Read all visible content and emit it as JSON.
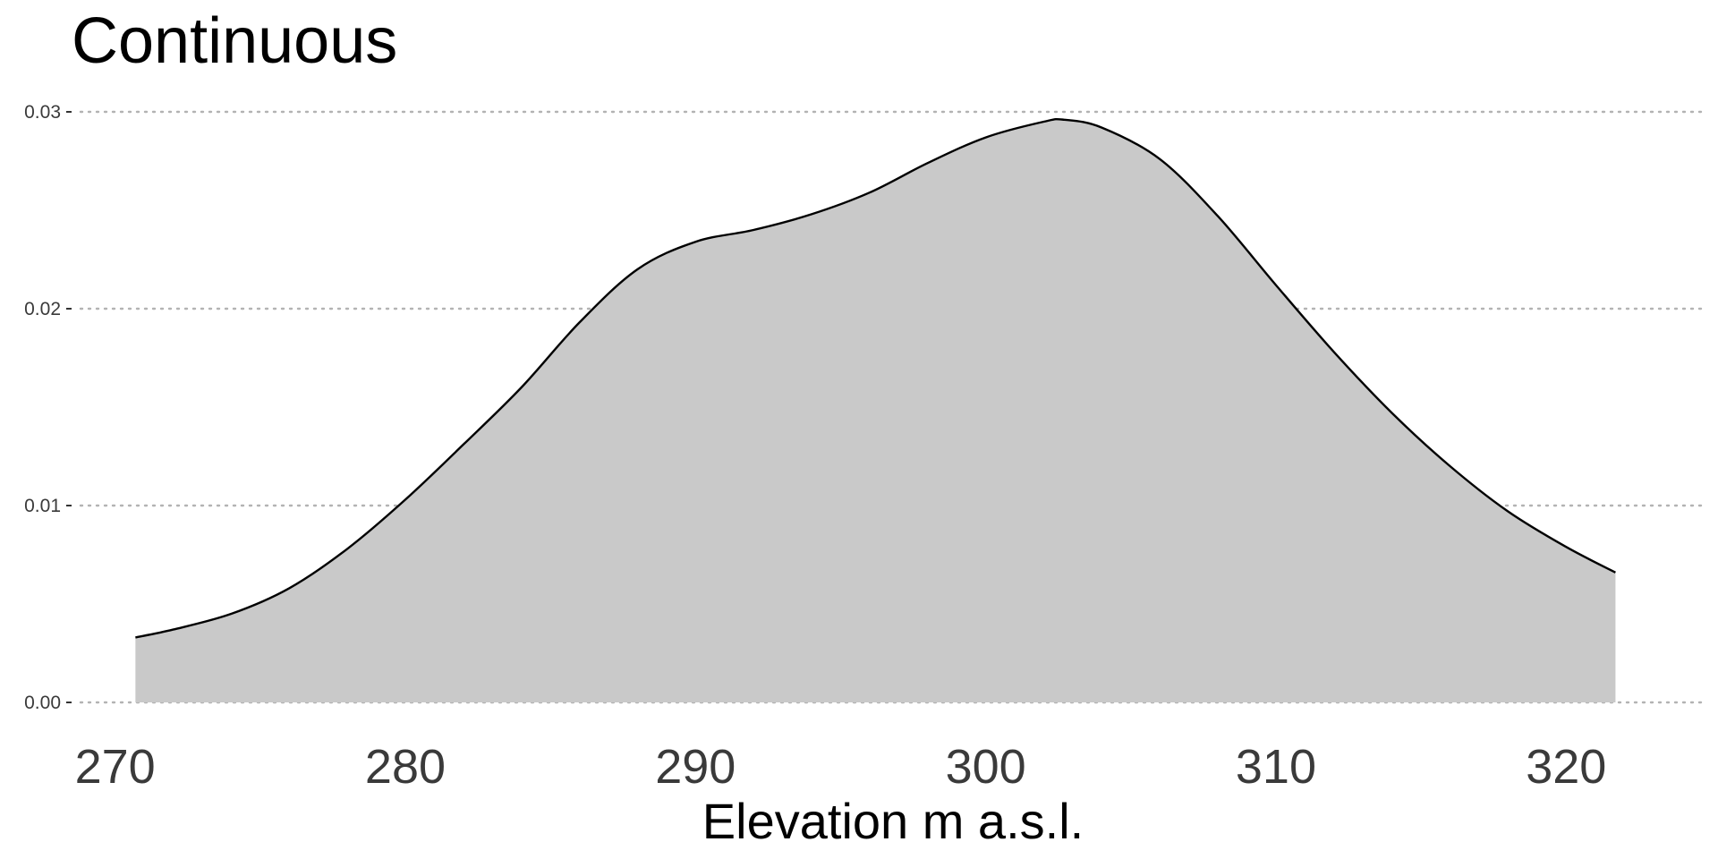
{
  "chart_data": {
    "type": "area",
    "title": "Continuous",
    "xlabel": "Elevation m a.s.l.",
    "ylabel": "",
    "xlim": [
      268.5,
      324
    ],
    "ylim": [
      0,
      0.03
    ],
    "x_ticks": [
      270,
      280,
      290,
      300,
      310,
      320
    ],
    "x_tick_labels": [
      "270",
      "280",
      "290",
      "300",
      "310",
      "320"
    ],
    "y_ticks": [
      0,
      0.01,
      0.02,
      0.03
    ],
    "y_tick_labels": [
      "0.00",
      "0.01",
      "0.02",
      "0.03"
    ],
    "grid": "horizontal-dotted",
    "legend": "none",
    "series": [
      {
        "x": [
          270.7,
          272,
          274,
          276,
          278,
          280,
          282,
          284,
          286,
          288,
          290,
          292,
          294,
          296,
          298,
          300,
          302,
          302.7,
          304,
          306,
          308,
          310,
          312,
          314,
          316,
          318,
          320,
          321.7
        ],
        "values": [
          0.0033,
          0.0037,
          0.0045,
          0.0058,
          0.0078,
          0.0103,
          0.0131,
          0.016,
          0.0193,
          0.022,
          0.0234,
          0.024,
          0.0248,
          0.0259,
          0.0274,
          0.0287,
          0.0295,
          0.0296,
          0.0292,
          0.0276,
          0.0247,
          0.0212,
          0.0178,
          0.0147,
          0.012,
          0.0097,
          0.0079,
          0.0066
        ]
      }
    ],
    "colors": {
      "fill": "#c9c9c9",
      "line": "#000000",
      "grid": "#b3b3b3",
      "tick_text": "#3a3a3a"
    }
  }
}
